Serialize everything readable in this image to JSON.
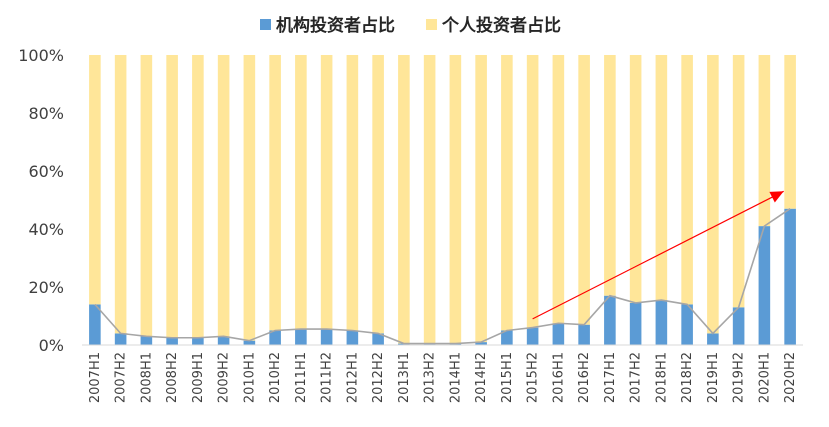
{
  "chart_data": {
    "type": "bar",
    "stacked": true,
    "percent_stacked": true,
    "categories": [
      "2007H1",
      "2007H2",
      "2008H1",
      "2008H2",
      "2009H1",
      "2009H2",
      "2010H1",
      "2010H2",
      "2011H1",
      "2011H2",
      "2012H1",
      "2012H2",
      "2013H1",
      "2013H2",
      "2014H1",
      "2014H2",
      "2015H1",
      "2015H2",
      "2016H1",
      "2016H2",
      "2017H1",
      "2017H2",
      "2018H1",
      "2018H2",
      "2019H1",
      "2019H2",
      "2020H1",
      "2020H2"
    ],
    "series": [
      {
        "name": "机构投资者占比",
        "color": "#5b9bd5",
        "values": [
          14,
          4,
          3,
          2.5,
          2.5,
          3,
          1.5,
          5,
          5.5,
          5.5,
          5,
          4,
          0.5,
          0.5,
          0.5,
          1,
          5,
          6,
          7.5,
          7,
          17,
          14.5,
          15.5,
          14,
          4,
          13,
          41,
          47
        ]
      },
      {
        "name": "个人投资者占比",
        "color": "#ffe699",
        "values": [
          86,
          96,
          97,
          97.5,
          97.5,
          97,
          98.5,
          95,
          94.5,
          94.5,
          95,
          96,
          99.5,
          99.5,
          99.5,
          99,
          95,
          94,
          92.5,
          93,
          83,
          85.5,
          84.5,
          86,
          96,
          87,
          59,
          53
        ]
      }
    ],
    "trend_line": {
      "series": "机构投资者占比",
      "color": "#a6a6a6"
    },
    "annotation_arrow": {
      "from_category": "2015H2",
      "from_value": 9,
      "to_category": "2020H1",
      "to_value": 53,
      "color": "#ff0000"
    },
    "ylim": [
      0,
      100
    ],
    "yticks": [
      "0%",
      "20%",
      "40%",
      "60%",
      "80%",
      "100%"
    ],
    "ytick_values": [
      0,
      20,
      40,
      60,
      80,
      100
    ],
    "legend_position": "top-center",
    "grid": false
  }
}
